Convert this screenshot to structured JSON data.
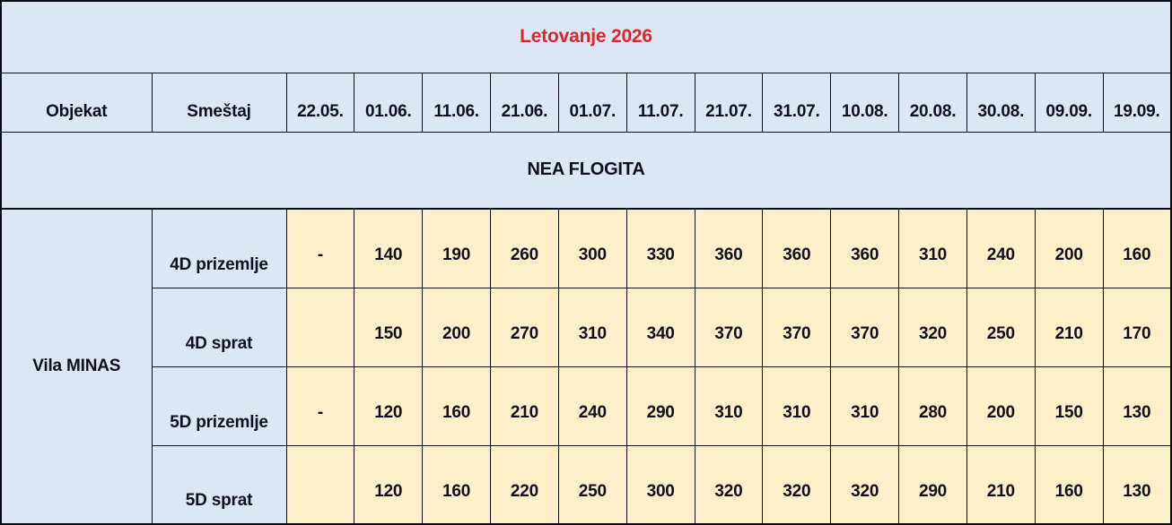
{
  "table": {
    "title": "Letovanje 2026",
    "header": {
      "objekat": "Objekat",
      "smestaj": "Smeštaj",
      "dates": [
        "22.05.",
        "01.06.",
        "11.06.",
        "21.06.",
        "01.07.",
        "11.07.",
        "21.07.",
        "31.07.",
        "10.08.",
        "20.08.",
        "30.08.",
        "09.09.",
        "19.09."
      ]
    },
    "section": "NEA FLOGITA",
    "object_name": "Vila MINAS",
    "rows": [
      {
        "label": "4D prizemlje",
        "prices": [
          "-",
          "140",
          "190",
          "260",
          "300",
          "330",
          "360",
          "360",
          "360",
          "310",
          "240",
          "200",
          "160"
        ]
      },
      {
        "label": "4D sprat",
        "prices": [
          "",
          "150",
          "200",
          "270",
          "310",
          "340",
          "370",
          "370",
          "370",
          "320",
          "250",
          "210",
          "170"
        ]
      },
      {
        "label": "5D prizemlje",
        "prices": [
          "-",
          "120",
          "160",
          "210",
          "240",
          "290",
          "310",
          "310",
          "310",
          "280",
          "200",
          "150",
          "130"
        ]
      },
      {
        "label": "5D sprat",
        "prices": [
          "",
          "120",
          "160",
          "220",
          "250",
          "300",
          "320",
          "320",
          "320",
          "290",
          "210",
          "160",
          "130"
        ]
      }
    ],
    "colors": {
      "header_bg": "#dbe7f3",
      "price_bg": "#fdf0c8",
      "title_color": "#e1242b",
      "text_color": "#10101c",
      "border_color": "#0b0b12"
    }
  }
}
